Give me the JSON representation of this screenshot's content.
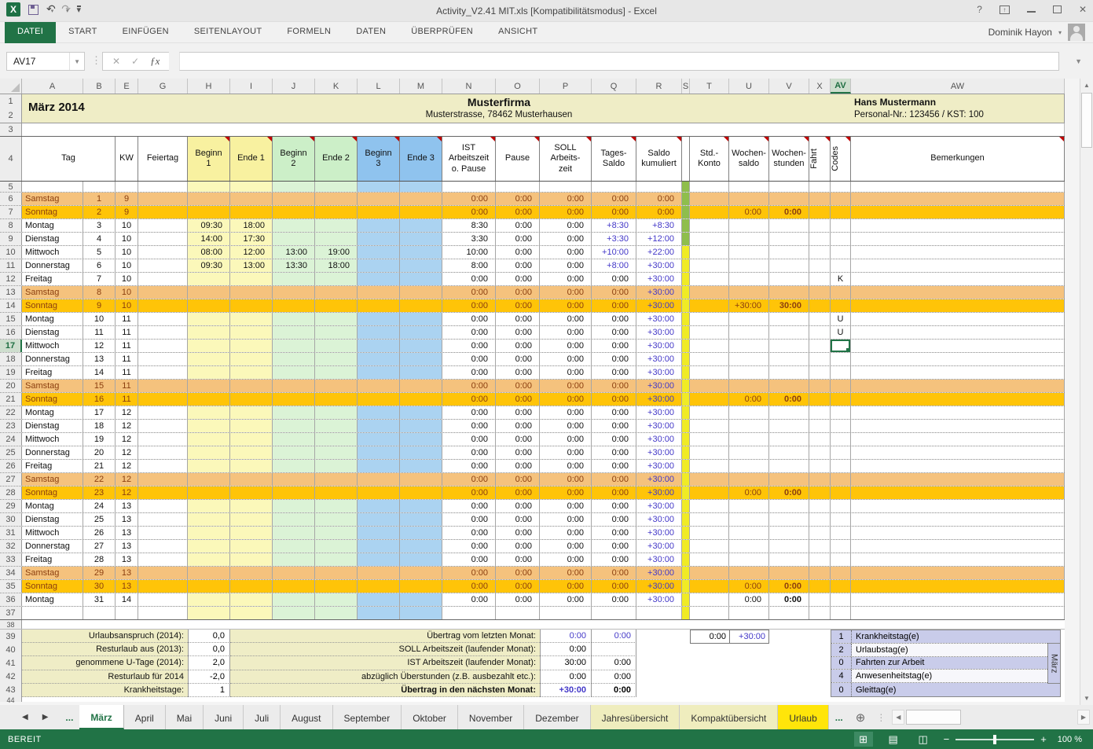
{
  "titlebar": {
    "title": "Activity_V2.41 MIT.xls  [Kompatibilitätsmodus] - Excel",
    "help": "?"
  },
  "ribbon": {
    "tabs": [
      {
        "label": "DATEI",
        "active": true
      },
      {
        "label": "START"
      },
      {
        "label": "EINFÜGEN"
      },
      {
        "label": "SEITENLAYOUT"
      },
      {
        "label": "FORMELN"
      },
      {
        "label": "DATEN"
      },
      {
        "label": "ÜBERPRÜFEN"
      },
      {
        "label": "ANSICHT"
      }
    ],
    "user": "Dominik Hayon"
  },
  "formula_bar": {
    "name_box": "AV17",
    "formula": ""
  },
  "sheet": {
    "month_title": "März 2014",
    "company": "Musterfirma",
    "address": "Musterstrasse, 78462 Musterhausen",
    "employee": "Hans Mustermann",
    "employee_id": "Personal-Nr.: 123456 / KST: 100",
    "column_letters": [
      "A",
      "B",
      "E",
      "G",
      "H",
      "I",
      "J",
      "K",
      "L",
      "M",
      "N",
      "O",
      "P",
      "Q",
      "R",
      "S",
      "T",
      "U",
      "V",
      "X",
      "AV",
      "AW"
    ],
    "active_column": "AV",
    "active_row": 17,
    "header": {
      "tag": "Tag",
      "kw": "KW",
      "feiertag": "Feiertag",
      "b1": "Beginn\n1",
      "e1": "Ende 1",
      "b2": "Beginn\n2",
      "e2": "Ende 2",
      "b3": "Beginn\n3",
      "e3": "Ende 3",
      "ist": "IST\nArbeitszeit\no. Pause",
      "pause": "Pause",
      "soll": "SOLL\nArbeits-\nzeit",
      "ts": "Tages-\nSaldo",
      "ks": "Saldo\nkumuliert",
      "std": "Std.-\nKonto",
      "ws": "Wochen-\nsaldo",
      "wh": "Wochen-\nstunden",
      "fahrt": "Fahrt",
      "codes": "Codes",
      "bem": "Bemerkungen"
    },
    "rows": [
      {
        "n": 6,
        "day": "Samstag",
        "date": "1",
        "kw": "9",
        "type": "sat",
        "band": "g",
        "ist": "0:00",
        "pause": "0:00",
        "soll": "0:00",
        "ts": "0:00",
        "ks": "0:00"
      },
      {
        "n": 7,
        "day": "Sonntag",
        "date": "2",
        "kw": "9",
        "type": "sun",
        "band": "g",
        "ist": "0:00",
        "pause": "0:00",
        "soll": "0:00",
        "ts": "0:00",
        "ks": "0:00",
        "ws": "0:00",
        "wh": "0:00"
      },
      {
        "n": 8,
        "day": "Montag",
        "date": "3",
        "kw": "10",
        "type": "wd",
        "band": "g",
        "b1": "09:30",
        "e1": "18:00",
        "ist": "8:30",
        "pause": "0:00",
        "soll": "0:00",
        "ts": "+8:30",
        "ks": "+8:30"
      },
      {
        "n": 9,
        "day": "Dienstag",
        "date": "4",
        "kw": "10",
        "type": "wd",
        "band": "g",
        "b1": "14:00",
        "e1": "17:30",
        "ist": "3:30",
        "pause": "0:00",
        "soll": "0:00",
        "ts": "+3:30",
        "ks": "+12:00"
      },
      {
        "n": 10,
        "day": "Mittwoch",
        "date": "5",
        "kw": "10",
        "type": "wd",
        "band": "y",
        "b1": "08:00",
        "e1": "12:00",
        "b2": "13:00",
        "e2": "19:00",
        "ist": "10:00",
        "pause": "0:00",
        "soll": "0:00",
        "ts": "+10:00",
        "ks": "+22:00"
      },
      {
        "n": 11,
        "day": "Donnerstag",
        "date": "6",
        "kw": "10",
        "type": "wd",
        "band": "y",
        "b1": "09:30",
        "e1": "13:00",
        "b2": "13:30",
        "e2": "18:00",
        "ist": "8:00",
        "pause": "0:00",
        "soll": "0:00",
        "ts": "+8:00",
        "ks": "+30:00"
      },
      {
        "n": 12,
        "day": "Freitag",
        "date": "7",
        "kw": "10",
        "type": "wd",
        "band": "y",
        "ist": "0:00",
        "pause": "0:00",
        "soll": "0:00",
        "ts": "0:00",
        "ks": "+30:00",
        "code": "K"
      },
      {
        "n": 13,
        "day": "Samstag",
        "date": "8",
        "kw": "10",
        "type": "sat",
        "band": "y",
        "ist": "0:00",
        "pause": "0:00",
        "soll": "0:00",
        "ts": "0:00",
        "ks": "+30:00"
      },
      {
        "n": 14,
        "day": "Sonntag",
        "date": "9",
        "kw": "10",
        "type": "sun",
        "band": "y",
        "ist": "0:00",
        "pause": "0:00",
        "soll": "0:00",
        "ts": "0:00",
        "ks": "+30:00",
        "ws": "+30:00",
        "wh": "30:00"
      },
      {
        "n": 15,
        "day": "Montag",
        "date": "10",
        "kw": "11",
        "type": "wd",
        "band": "y",
        "ist": "0:00",
        "pause": "0:00",
        "soll": "0:00",
        "ts": "0:00",
        "ks": "+30:00",
        "code": "U"
      },
      {
        "n": 16,
        "day": "Dienstag",
        "date": "11",
        "kw": "11",
        "type": "wd",
        "band": "y",
        "ist": "0:00",
        "pause": "0:00",
        "soll": "0:00",
        "ts": "0:00",
        "ks": "+30:00",
        "code": "U"
      },
      {
        "n": 17,
        "day": "Mittwoch",
        "date": "12",
        "kw": "11",
        "type": "wd",
        "band": "y",
        "ist": "0:00",
        "pause": "0:00",
        "soll": "0:00",
        "ts": "0:00",
        "ks": "+30:00",
        "selected": true
      },
      {
        "n": 18,
        "day": "Donnerstag",
        "date": "13",
        "kw": "11",
        "type": "wd",
        "band": "y",
        "ist": "0:00",
        "pause": "0:00",
        "soll": "0:00",
        "ts": "0:00",
        "ks": "+30:00"
      },
      {
        "n": 19,
        "day": "Freitag",
        "date": "14",
        "kw": "11",
        "type": "wd",
        "band": "y",
        "ist": "0:00",
        "pause": "0:00",
        "soll": "0:00",
        "ts": "0:00",
        "ks": "+30:00"
      },
      {
        "n": 20,
        "day": "Samstag",
        "date": "15",
        "kw": "11",
        "type": "sat",
        "band": "y",
        "ist": "0:00",
        "pause": "0:00",
        "soll": "0:00",
        "ts": "0:00",
        "ks": "+30:00"
      },
      {
        "n": 21,
        "day": "Sonntag",
        "date": "16",
        "kw": "11",
        "type": "sun",
        "band": "y",
        "ist": "0:00",
        "pause": "0:00",
        "soll": "0:00",
        "ts": "0:00",
        "ks": "+30:00",
        "ws": "0:00",
        "wh": "0:00"
      },
      {
        "n": 22,
        "day": "Montag",
        "date": "17",
        "kw": "12",
        "type": "wd",
        "band": "y",
        "ist": "0:00",
        "pause": "0:00",
        "soll": "0:00",
        "ts": "0:00",
        "ks": "+30:00"
      },
      {
        "n": 23,
        "day": "Dienstag",
        "date": "18",
        "kw": "12",
        "type": "wd",
        "band": "y",
        "ist": "0:00",
        "pause": "0:00",
        "soll": "0:00",
        "ts": "0:00",
        "ks": "+30:00"
      },
      {
        "n": 24,
        "day": "Mittwoch",
        "date": "19",
        "kw": "12",
        "type": "wd",
        "band": "y",
        "ist": "0:00",
        "pause": "0:00",
        "soll": "0:00",
        "ts": "0:00",
        "ks": "+30:00"
      },
      {
        "n": 25,
        "day": "Donnerstag",
        "date": "20",
        "kw": "12",
        "type": "wd",
        "band": "y",
        "ist": "0:00",
        "pause": "0:00",
        "soll": "0:00",
        "ts": "0:00",
        "ks": "+30:00"
      },
      {
        "n": 26,
        "day": "Freitag",
        "date": "21",
        "kw": "12",
        "type": "wd",
        "band": "y",
        "ist": "0:00",
        "pause": "0:00",
        "soll": "0:00",
        "ts": "0:00",
        "ks": "+30:00"
      },
      {
        "n": 27,
        "day": "Samstag",
        "date": "22",
        "kw": "12",
        "type": "sat",
        "band": "y",
        "ist": "0:00",
        "pause": "0:00",
        "soll": "0:00",
        "ts": "0:00",
        "ks": "+30:00"
      },
      {
        "n": 28,
        "day": "Sonntag",
        "date": "23",
        "kw": "12",
        "type": "sun",
        "band": "y",
        "ist": "0:00",
        "pause": "0:00",
        "soll": "0:00",
        "ts": "0:00",
        "ks": "+30:00",
        "ws": "0:00",
        "wh": "0:00"
      },
      {
        "n": 29,
        "day": "Montag",
        "date": "24",
        "kw": "13",
        "type": "wd",
        "band": "y",
        "ist": "0:00",
        "pause": "0:00",
        "soll": "0:00",
        "ts": "0:00",
        "ks": "+30:00"
      },
      {
        "n": 30,
        "day": "Dienstag",
        "date": "25",
        "kw": "13",
        "type": "wd",
        "band": "y",
        "ist": "0:00",
        "pause": "0:00",
        "soll": "0:00",
        "ts": "0:00",
        "ks": "+30:00"
      },
      {
        "n": 31,
        "day": "Mittwoch",
        "date": "26",
        "kw": "13",
        "type": "wd",
        "band": "y",
        "ist": "0:00",
        "pause": "0:00",
        "soll": "0:00",
        "ts": "0:00",
        "ks": "+30:00"
      },
      {
        "n": 32,
        "day": "Donnerstag",
        "date": "27",
        "kw": "13",
        "type": "wd",
        "band": "y",
        "ist": "0:00",
        "pause": "0:00",
        "soll": "0:00",
        "ts": "0:00",
        "ks": "+30:00"
      },
      {
        "n": 33,
        "day": "Freitag",
        "date": "28",
        "kw": "13",
        "type": "wd",
        "band": "y",
        "ist": "0:00",
        "pause": "0:00",
        "soll": "0:00",
        "ts": "0:00",
        "ks": "+30:00"
      },
      {
        "n": 34,
        "day": "Samstag",
        "date": "29",
        "kw": "13",
        "type": "sat",
        "band": "y",
        "ist": "0:00",
        "pause": "0:00",
        "soll": "0:00",
        "ts": "0:00",
        "ks": "+30:00"
      },
      {
        "n": 35,
        "day": "Sonntag",
        "date": "30",
        "kw": "13",
        "type": "sun",
        "band": "y",
        "ist": "0:00",
        "pause": "0:00",
        "soll": "0:00",
        "ts": "0:00",
        "ks": "+30:00",
        "ws": "0:00",
        "wh": "0:00"
      },
      {
        "n": 36,
        "day": "Montag",
        "date": "31",
        "kw": "14",
        "type": "wd",
        "band": "y",
        "ist": "0:00",
        "pause": "0:00",
        "soll": "0:00",
        "ts": "0:00",
        "ks": "+30:00",
        "ws": "0:00",
        "wh": "0:00"
      }
    ]
  },
  "summary": {
    "left": [
      {
        "n": 39,
        "label": "Urlaubsanspruch (2014):",
        "value": "0,0"
      },
      {
        "n": 40,
        "label": "Resturlaub aus (2013):",
        "value": "0,0"
      },
      {
        "n": 41,
        "label": "genommene U-Tage (2014):",
        "value": "2,0"
      },
      {
        "n": 42,
        "label": "Resturlaub für 2014",
        "value": "-2,0"
      },
      {
        "n": 43,
        "label": "Krankheitstage:",
        "value": "1"
      }
    ],
    "middle": [
      {
        "label": "Übertrag vom letzten Monat:",
        "v1": "0:00",
        "v2": "0:00",
        "v1c": "blue",
        "v2c": "blue"
      },
      {
        "label": "SOLL Arbeitszeit (laufender Monat):",
        "v1": "0:00",
        "v2": ""
      },
      {
        "label": "IST Arbeitszeit (laufender Monat):",
        "v1": "30:00",
        "v2": "0:00"
      },
      {
        "label": "abzüglich Überstunden (z.B. ausbezahlt etc.):",
        "v1": "0:00",
        "v2": "0:00"
      },
      {
        "label": "Übertrag in den nächsten Monat:",
        "v1": "+30:00",
        "v2": "0:00",
        "bold": true,
        "v1c": "blue"
      }
    ],
    "carry_box": {
      "left": "0:00",
      "right": "+30:00"
    },
    "legend": [
      {
        "count": "1",
        "label": "Krankheitstag(e)"
      },
      {
        "count": "2",
        "label": "Urlaubstag(e)"
      },
      {
        "count": "0",
        "label": "Fahrten zur Arbeit"
      },
      {
        "count": "4",
        "label": "Anwesenheitstag(e)"
      },
      {
        "count": "0",
        "label": "Gleittag(e)"
      }
    ],
    "legend_side": "März"
  },
  "sheet_tabs": {
    "overflow_left": "...",
    "tabs": [
      {
        "label": "März",
        "active": true
      },
      {
        "label": "April"
      },
      {
        "label": "Mai"
      },
      {
        "label": "Juni"
      },
      {
        "label": "Juli"
      },
      {
        "label": "August"
      },
      {
        "label": "September"
      },
      {
        "label": "Oktober"
      },
      {
        "label": "November"
      },
      {
        "label": "Dezember"
      },
      {
        "label": "Jahresübersicht",
        "style": "paleyellow"
      },
      {
        "label": "Kompaktübersicht",
        "style": "paleyellow"
      },
      {
        "label": "Urlaub",
        "style": "yellow"
      }
    ],
    "overflow_right": "..."
  },
  "statusbar": {
    "mode": "BEREIT",
    "zoom": "100 %"
  }
}
